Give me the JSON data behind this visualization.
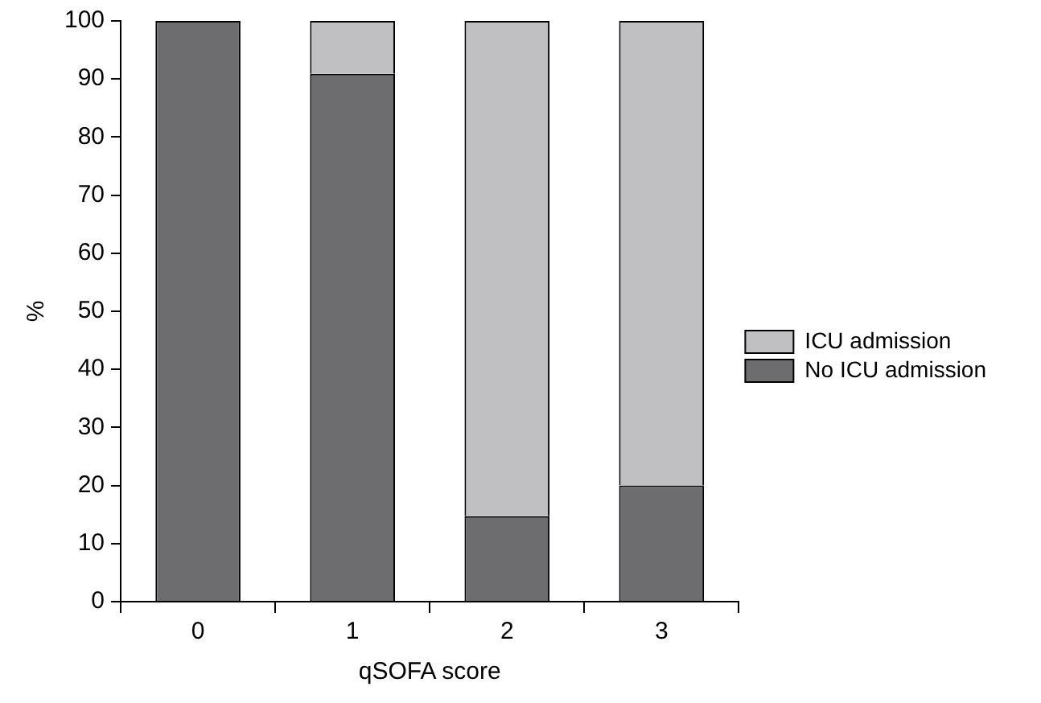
{
  "chart_data": {
    "type": "bar",
    "xlabel": "qSOFA score",
    "ylabel": "%",
    "categories": [
      "0",
      "1",
      "2",
      "3"
    ],
    "stacked": true,
    "series": [
      {
        "name": "No ICU admission",
        "color": "#6d6d6f",
        "values": [
          100,
          90.9,
          14.7,
          20
        ]
      },
      {
        "name": "ICU admission",
        "color": "#c0c0c2",
        "values": [
          0,
          9.1,
          85.3,
          80
        ]
      }
    ],
    "ylim": [
      0,
      100
    ],
    "yticks": [
      0,
      10,
      20,
      30,
      40,
      50,
      60,
      70,
      80,
      90,
      100
    ],
    "grid": false,
    "legend": "right"
  }
}
